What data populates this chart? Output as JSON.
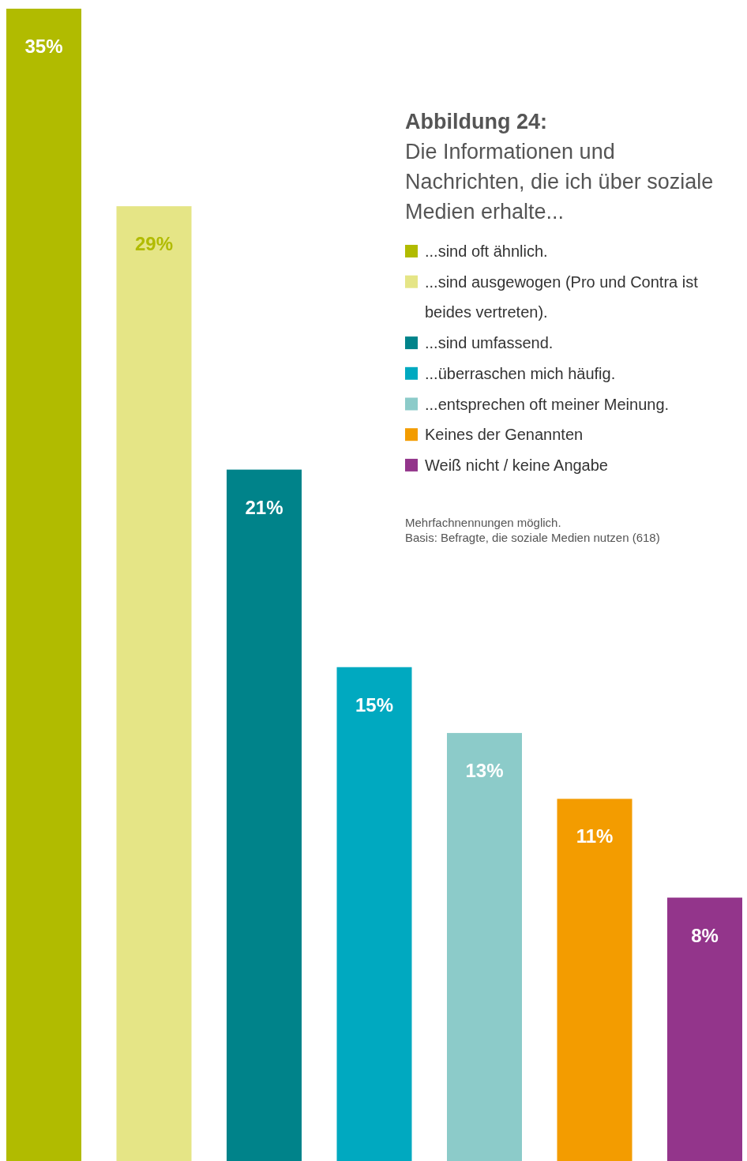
{
  "chart_data": {
    "type": "bar",
    "title": "Abbildung 24:",
    "subtitle": "Die Informationen und Nachrichten, die ich über soziale Medien erhalte...",
    "categories": [
      null,
      null,
      null,
      null,
      null,
      null,
      null
    ],
    "data_labels": true,
    "stacked": true,
    "legend": "top right",
    "annotations": [
      "Mehrfachnennungen möglich.",
      "Basis: Befragte, die soziale Medien nutzen (618)"
    ],
    "series": [
      {
        "name": "...sind oft ähnlich.",
        "color": "#b1bb00",
        "values": [
          35,
          null,
          null,
          null,
          null,
          null,
          null
        ],
        "value_labels": [
          "35%",
          null,
          null,
          null,
          null,
          null,
          null
        ]
      },
      {
        "name": "...sind ausgewogen (Pro und Contra ist beides vertreten).",
        "color": "#e5e586",
        "values": [
          null,
          29,
          null,
          null,
          null,
          null,
          null
        ],
        "value_labels": [
          null,
          "29%",
          null,
          null,
          null,
          null,
          null
        ]
      },
      {
        "name": "...sind umfassend.",
        "color": "#00838a",
        "values": [
          null,
          null,
          21,
          null,
          null,
          null,
          null
        ],
        "value_labels": [
          null,
          null,
          "21%",
          null,
          null,
          null,
          null
        ]
      },
      {
        "name": "...überraschen mich häufig.",
        "color": "#00a9c0",
        "values": [
          null,
          null,
          null,
          15,
          null,
          null,
          null
        ],
        "value_labels": [
          null,
          null,
          null,
          "15%",
          null,
          null,
          null
        ]
      },
      {
        "name": "...entsprechen oft meiner Meinung.",
        "color": "#8ccbc9",
        "values": [
          null,
          null,
          null,
          null,
          13,
          null,
          null
        ],
        "value_labels": [
          null,
          null,
          null,
          null,
          "13%",
          null,
          null
        ]
      },
      {
        "name": "Keines der Genannten",
        "color": "#f39c00",
        "values": [
          null,
          null,
          null,
          null,
          null,
          11,
          null
        ],
        "value_labels": [
          null,
          null,
          null,
          null,
          null,
          "11%",
          null
        ]
      },
      {
        "name": "Weiß nicht / keine Angabe",
        "color": "#93358b",
        "values": [
          null,
          null,
          null,
          null,
          null,
          null,
          8
        ],
        "value_labels": [
          null,
          null,
          null,
          null,
          null,
          null,
          "8%"
        ]
      }
    ]
  }
}
